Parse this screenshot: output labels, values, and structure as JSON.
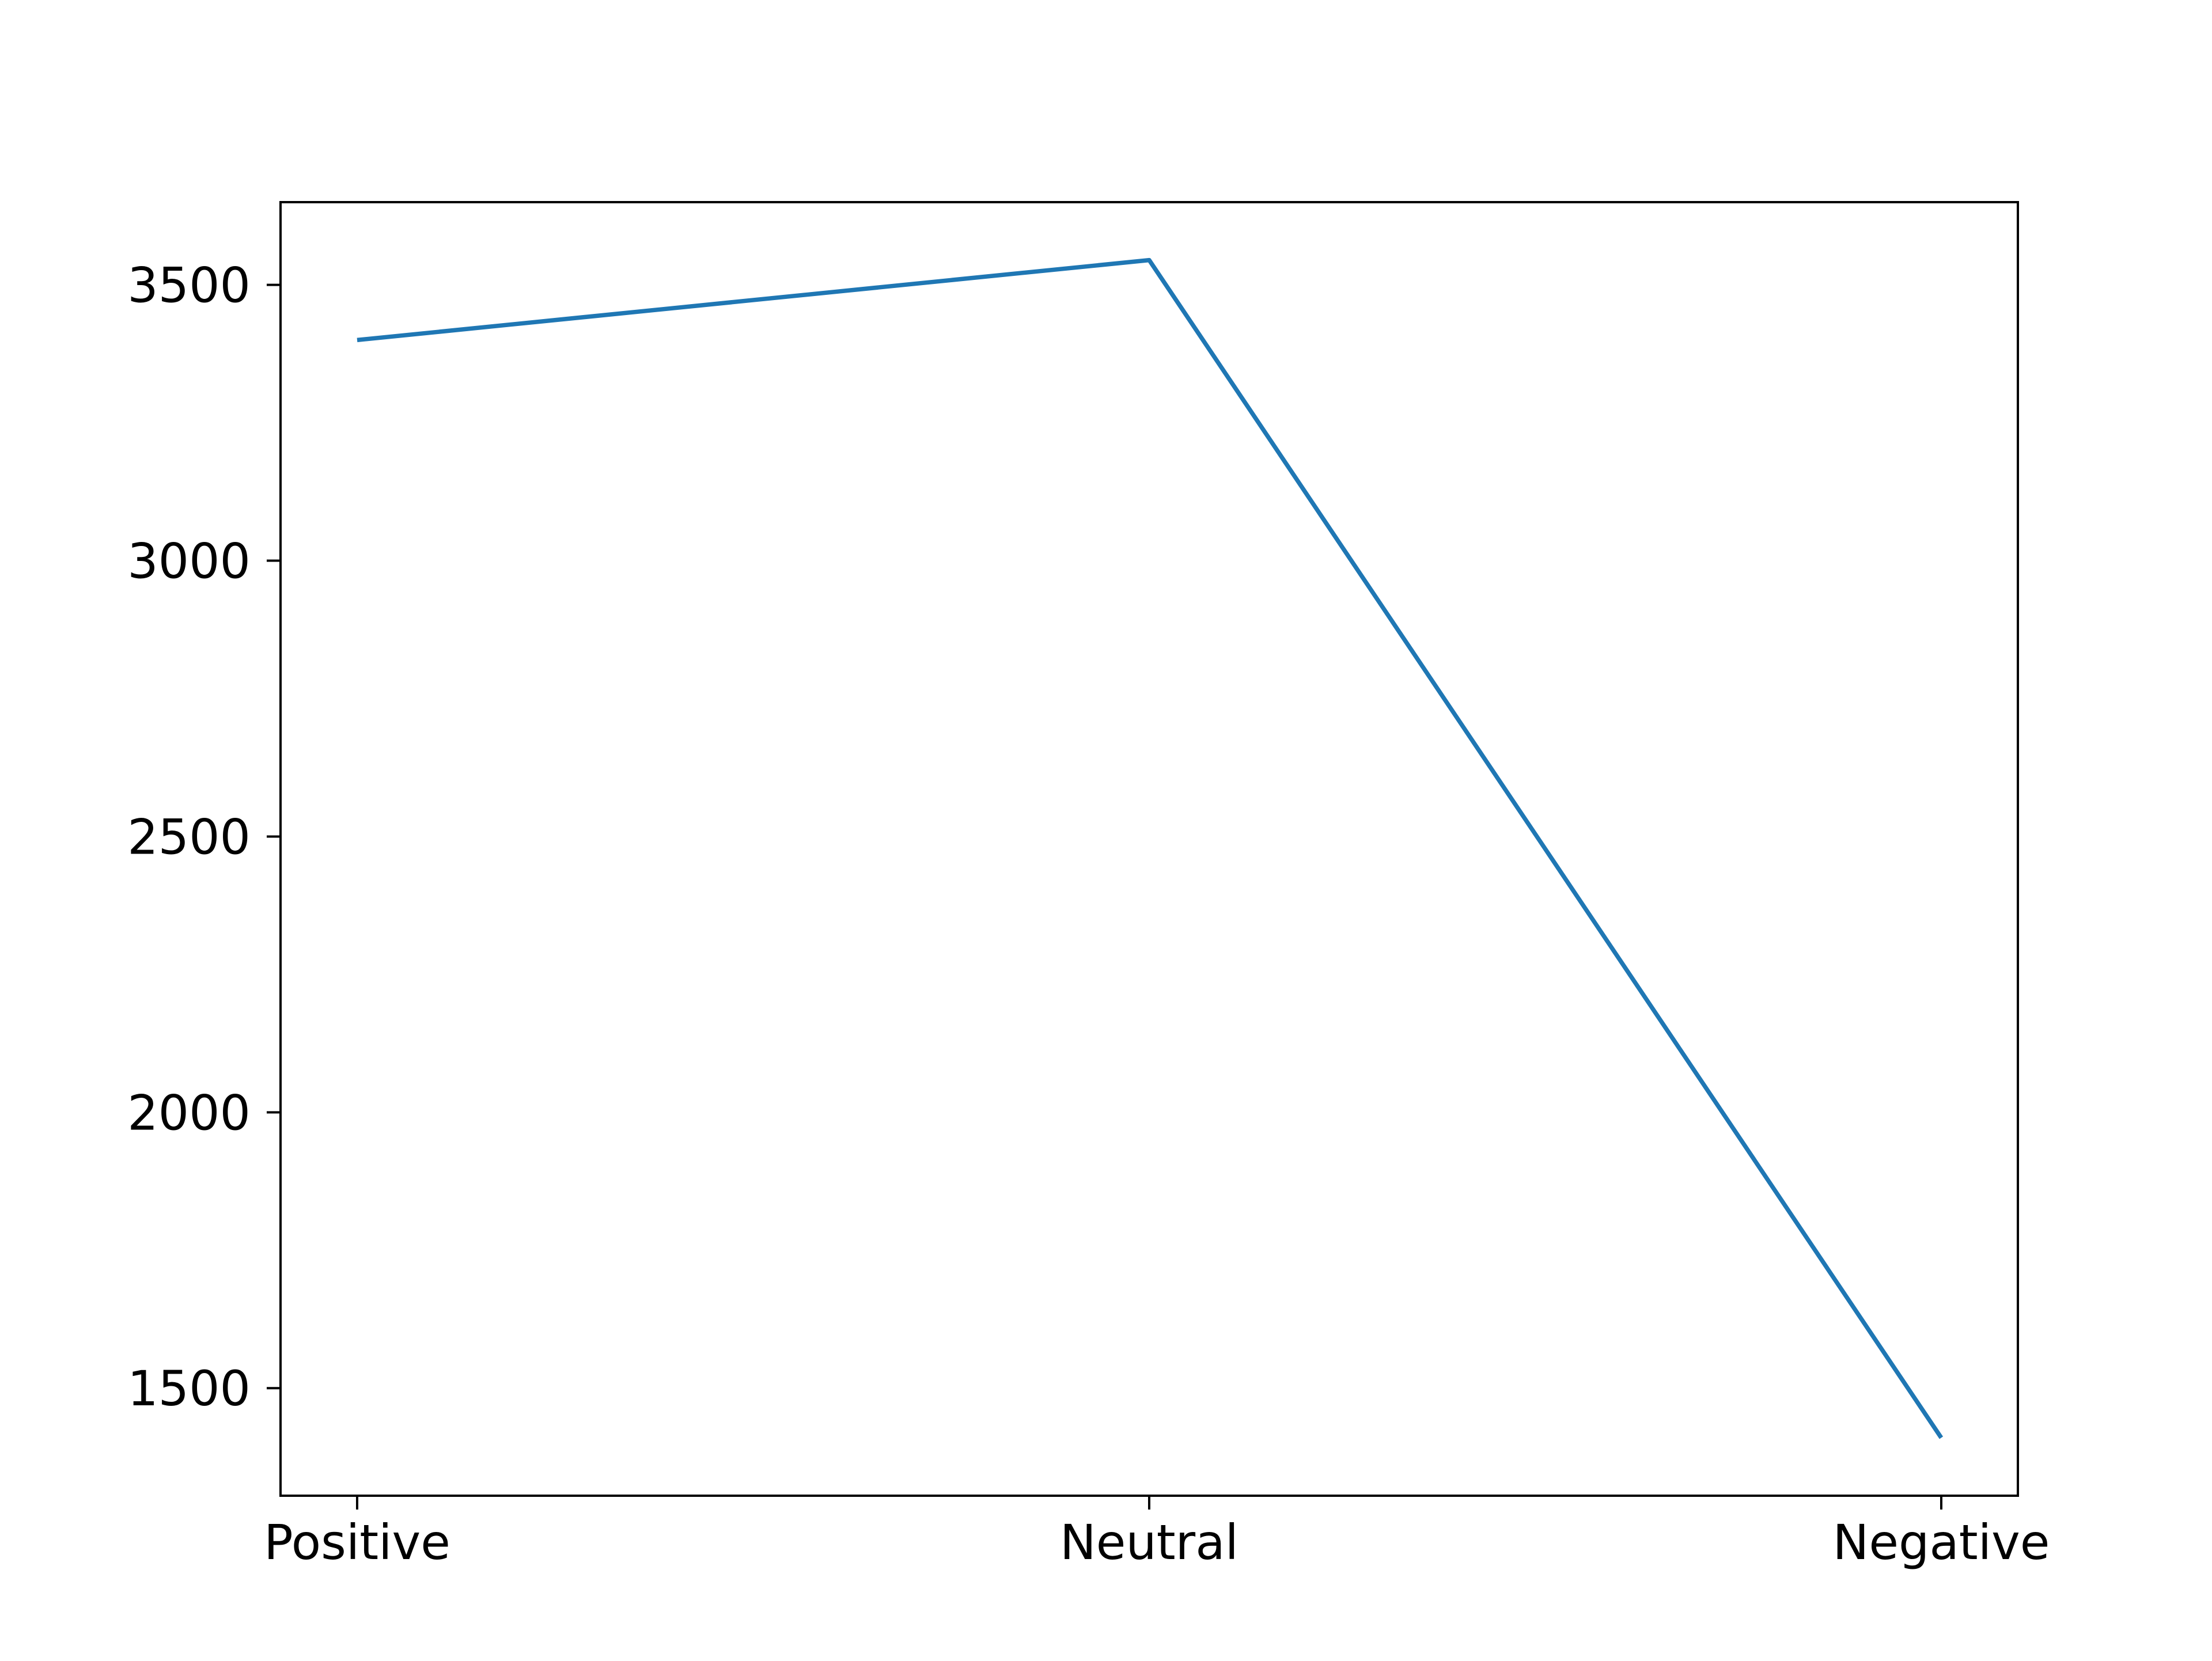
{
  "chart_data": {
    "type": "line",
    "title": "",
    "xlabel": "",
    "ylabel": "",
    "categories": [
      "Positive",
      "Neutral",
      "Negative"
    ],
    "series": [
      {
        "values": [
          3400,
          3545,
          1410
        ],
        "color": "#1f77b4"
      }
    ],
    "ylim": [
      1305,
      3650
    ],
    "yticks": [
      1500,
      2000,
      2500,
      3000,
      3500
    ],
    "ytick_labels": [
      "1500",
      "2000",
      "2500",
      "3000",
      "3500"
    ],
    "grid": false,
    "legend": "none"
  }
}
